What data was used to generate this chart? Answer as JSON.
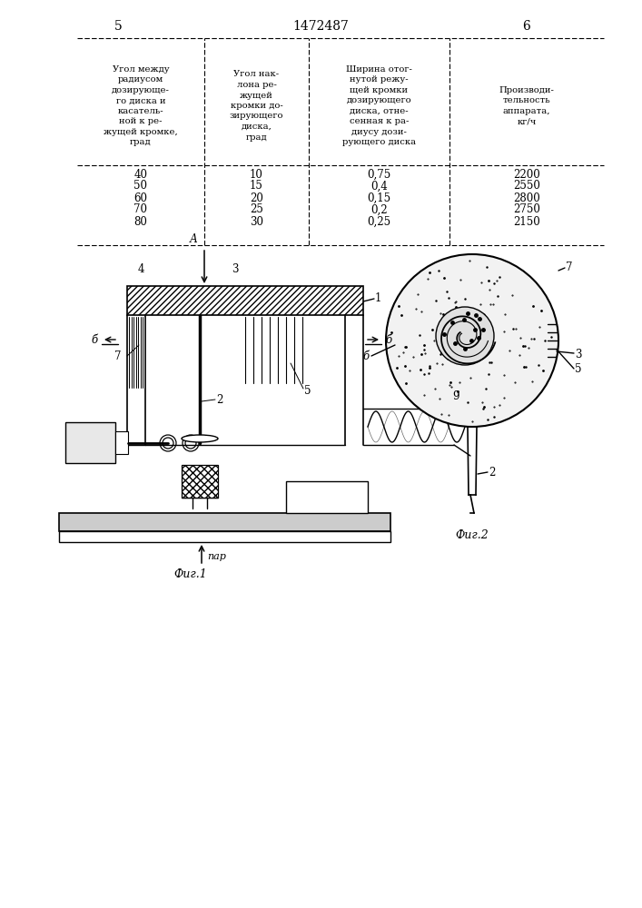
{
  "page_numbers": [
    "5",
    "6"
  ],
  "patent_number": "1472487",
  "table": {
    "headers": [
      "Угол между\nрадиусом\nдозирующе-\nго диска и\nкасатель-\nной к ре-\nжущей кромке,\nград",
      "Угол нак-\nлона ре-\nжущей\nкромки до-\nзирующего\nдиска,\nград",
      "Ширина отог-\nнутой режу-\nщей кромки\nдозирующего\nдиска, отне-\nсенная к ра-\nдиусу дози-\nрующего диска",
      "Производи-\nтельность\nаппарата,\nкг/ч"
    ],
    "rows": [
      [
        "40",
        "10",
        "0,75",
        "2200"
      ],
      [
        "50",
        "15",
        "0,4",
        "2550"
      ],
      [
        "60",
        "20",
        "0,15",
        "2800"
      ],
      [
        "70",
        "25",
        "0,2",
        "2750"
      ],
      [
        "80",
        "30",
        "0,25",
        "2150"
      ]
    ]
  },
  "fig1_caption": "Фиг.1",
  "fig2_caption": "Фиг.2",
  "bg_color": "#ffffff"
}
